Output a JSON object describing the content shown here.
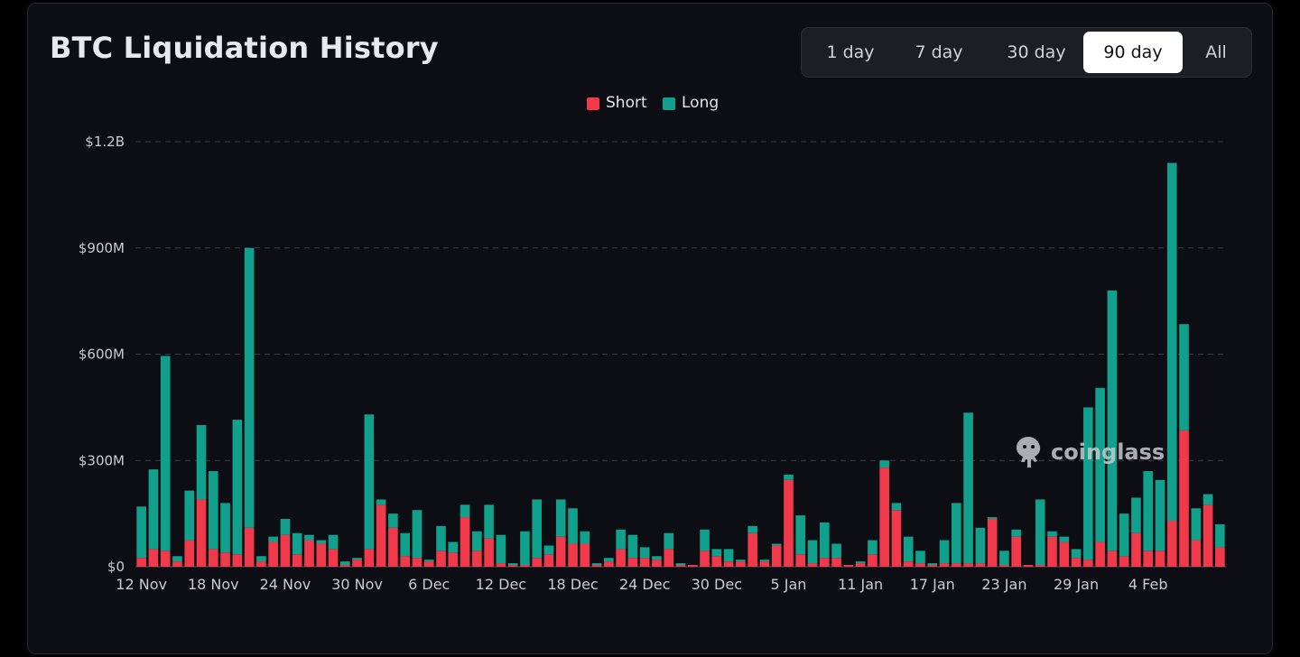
{
  "header": {
    "title": "BTC Liquidation History"
  },
  "range_selector": {
    "options": [
      "1 day",
      "7 day",
      "30 day",
      "90 day",
      "All"
    ],
    "active": "90 day"
  },
  "watermark": {
    "text": "coinglass",
    "icon": "coinglass-logo-icon"
  },
  "colors": {
    "short": "#f0394a",
    "long": "#10a08c",
    "background": "#0d0e13"
  },
  "chart_data": {
    "type": "bar",
    "stacked": true,
    "legend": [
      "Short",
      "Long"
    ],
    "legend_position": "top-center",
    "grid": true,
    "y_ticks": [
      "$0",
      "$300M",
      "$600M",
      "$900M",
      "$1.2B"
    ],
    "ylim": [
      0,
      1200
    ],
    "y_unit": "$M",
    "x_ticks": [
      "12 Nov",
      "18 Nov",
      "24 Nov",
      "30 Nov",
      "6 Dec",
      "12 Dec",
      "18 Dec",
      "24 Dec",
      "30 Dec",
      "5 Jan",
      "11 Jan",
      "17 Jan",
      "23 Jan",
      "29 Jan",
      "4 Feb"
    ],
    "x_tick_every": 6,
    "series": [
      {
        "name": "Short",
        "values": [
          25,
          50,
          45,
          15,
          75,
          190,
          50,
          40,
          35,
          110,
          15,
          70,
          90,
          35,
          75,
          65,
          50,
          5,
          20,
          50,
          175,
          110,
          30,
          25,
          15,
          45,
          40,
          140,
          45,
          80,
          10,
          5,
          5,
          25,
          35,
          85,
          65,
          65,
          5,
          15,
          50,
          25,
          25,
          20,
          50,
          5,
          5,
          45,
          30,
          15,
          15,
          95,
          15,
          60,
          245,
          35,
          10,
          25,
          25,
          5,
          10,
          35,
          280,
          160,
          15,
          10,
          5,
          10,
          10,
          10,
          10,
          135,
          5,
          85,
          5,
          5,
          85,
          70,
          25,
          20,
          70,
          45,
          30,
          95,
          45,
          45,
          130,
          385,
          75,
          175,
          55
        ]
      },
      {
        "name": "Long",
        "values": [
          145,
          225,
          550,
          15,
          140,
          210,
          220,
          140,
          380,
          790,
          15,
          15,
          45,
          60,
          15,
          10,
          40,
          10,
          5,
          380,
          15,
          40,
          65,
          135,
          5,
          70,
          30,
          35,
          55,
          95,
          80,
          5,
          95,
          165,
          25,
          105,
          100,
          35,
          5,
          10,
          55,
          65,
          30,
          10,
          45,
          5,
          0,
          60,
          20,
          35,
          5,
          20,
          5,
          5,
          15,
          110,
          65,
          100,
          40,
          0,
          5,
          40,
          20,
          20,
          70,
          35,
          5,
          65,
          170,
          425,
          100,
          5,
          40,
          20,
          0,
          185,
          15,
          15,
          25,
          430,
          435,
          735,
          120,
          100,
          225,
          200,
          1010,
          300,
          90,
          30,
          65
        ]
      }
    ]
  }
}
